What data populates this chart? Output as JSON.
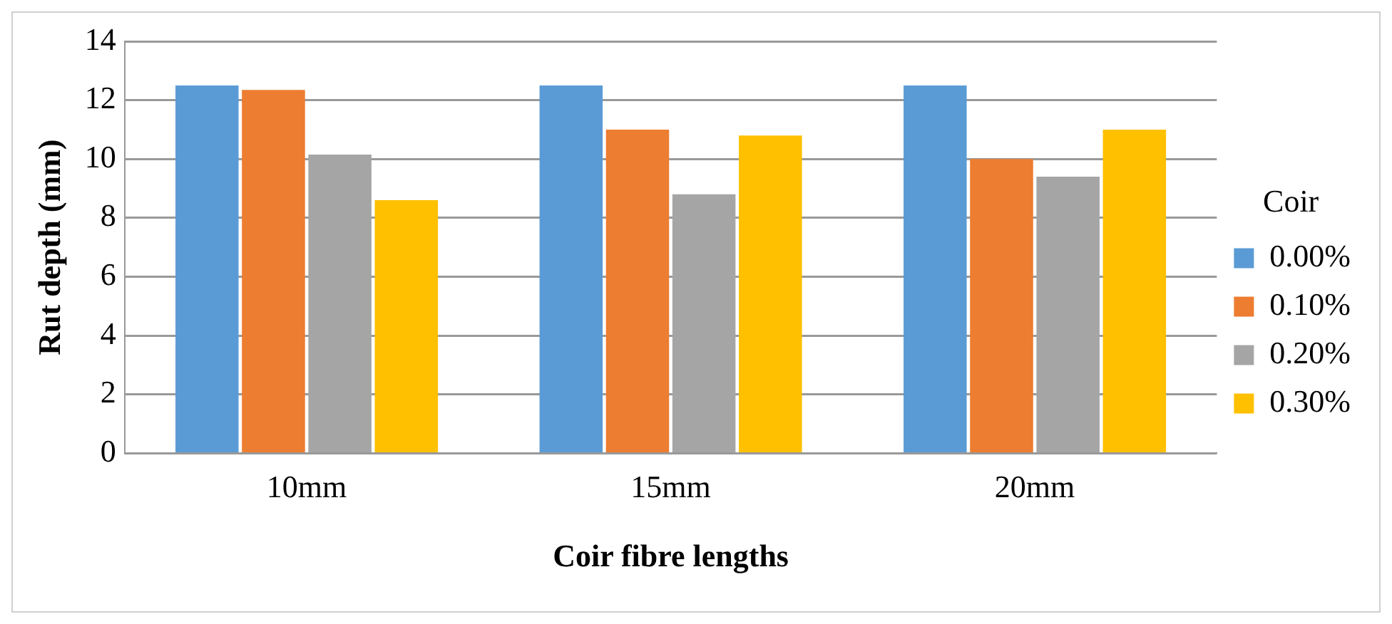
{
  "chart_data": {
    "type": "bar",
    "xlabel": "Coir fibre lengths",
    "ylabel": "Rut depth (mm)",
    "legend_title": "Coir",
    "categories": [
      "10mm",
      "15mm",
      "20mm"
    ],
    "series": [
      {
        "name": "0.00%",
        "color": "#5b9bd5",
        "values": [
          12.5,
          12.5,
          12.5
        ]
      },
      {
        "name": "0.10%",
        "color": "#ed7d31",
        "values": [
          12.35,
          11.0,
          10.0
        ]
      },
      {
        "name": "0.20%",
        "color": "#a5a5a5",
        "values": [
          10.15,
          8.8,
          9.4
        ]
      },
      {
        "name": "0.30%",
        "color": "#ffc000",
        "values": [
          8.6,
          10.8,
          11.0
        ]
      }
    ],
    "ylim": [
      0,
      14
    ],
    "yticks": [
      0,
      2,
      4,
      6,
      8,
      10,
      12,
      14
    ],
    "grid": "y",
    "legend": "right"
  }
}
